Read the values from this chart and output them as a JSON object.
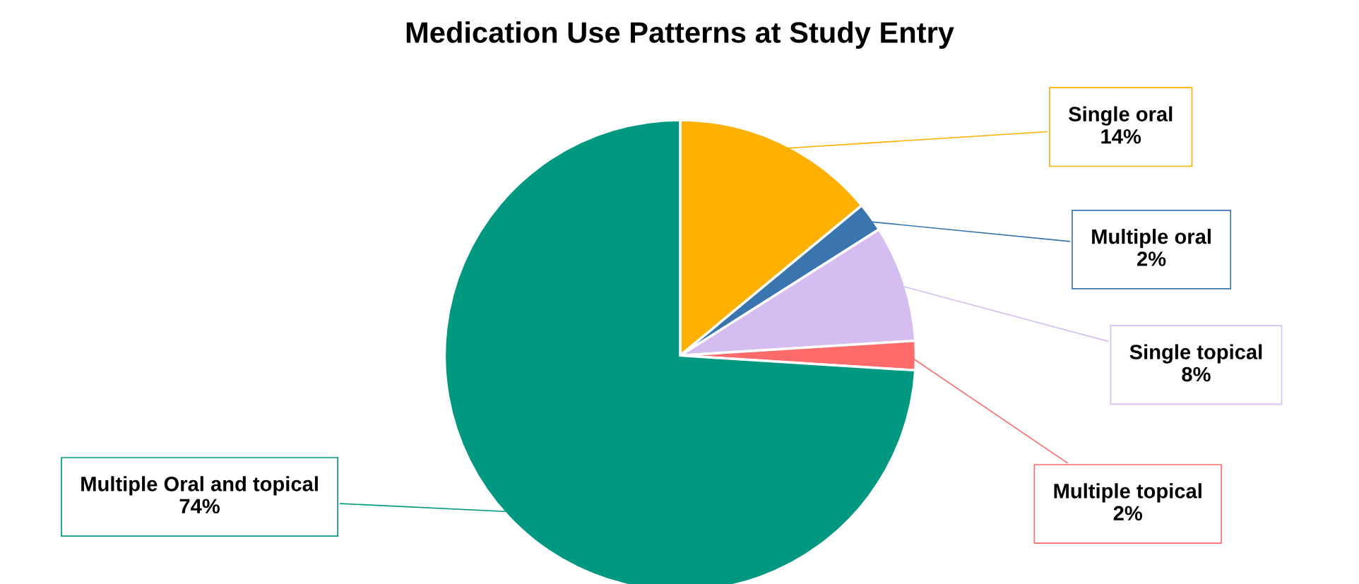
{
  "chart_data": {
    "type": "pie",
    "title": "Medication Use Patterns at Study Entry",
    "categories": [
      "Single oral",
      "Multiple oral",
      "Single topical",
      "Multiple topical",
      "Multiple Oral and topical"
    ],
    "values": [
      14,
      2,
      8,
      2,
      74
    ],
    "value_labels": [
      "14%",
      "2%",
      "8%",
      "2%",
      "74%"
    ],
    "colors": [
      "#ffb000",
      "#3a75b0",
      "#d5bdf2",
      "#ff6b6b",
      "#009880"
    ],
    "legend": false
  }
}
